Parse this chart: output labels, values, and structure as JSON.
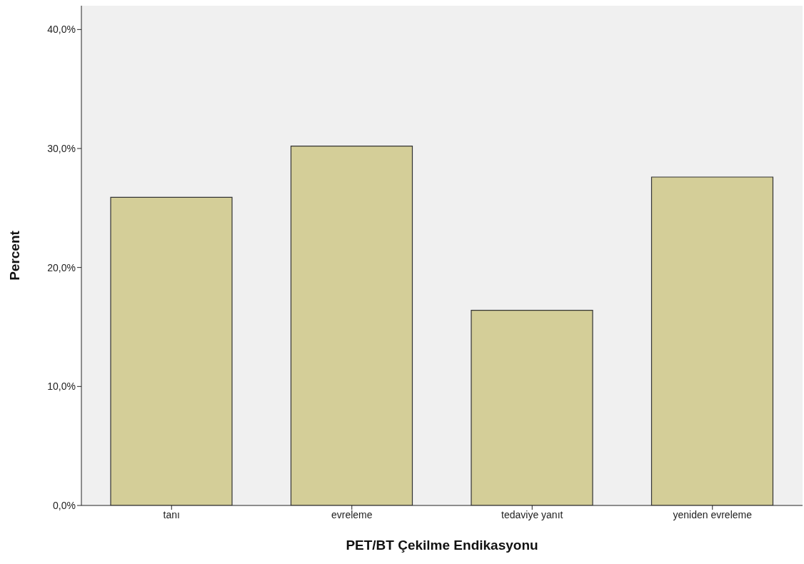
{
  "chart_data": {
    "type": "bar",
    "xlabel": "PET/BT Çekilme Endikasyonu",
    "ylabel": "Percent",
    "categories": [
      "tanı",
      "evreleme",
      "tedaviye yanıt",
      "yeniden evreleme"
    ],
    "values": [
      25.9,
      30.2,
      16.4,
      27.6
    ],
    "color": "#d4ce98",
    "ylim": [
      0,
      42
    ],
    "yticks": [
      {
        "value": 0,
        "label": "0,0%"
      },
      {
        "value": 10,
        "label": "10,0%"
      },
      {
        "value": 20,
        "label": "20,0%"
      },
      {
        "value": 30,
        "label": "30,0%"
      },
      {
        "value": 40,
        "label": "40,0%"
      }
    ],
    "grid": false
  }
}
